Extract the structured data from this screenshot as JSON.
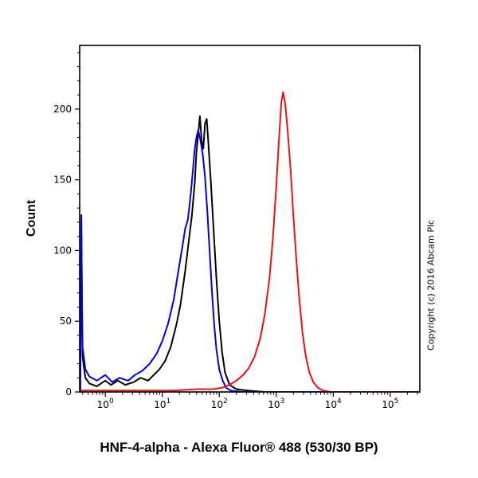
{
  "title": "HNF-4-alpha - Alexa Fluor® 488 (530/30 BP)",
  "copyright": "Copyright (c) 2016 Abcam Plc",
  "chart_data": {
    "type": "line",
    "subtype": "flow-cytometry-histogram",
    "title": "HNF-4-alpha - Alexa Fluor® 488 (530/30 BP)",
    "xlabel": "",
    "ylabel": "Count",
    "xscale": "log",
    "xlim_log": [
      -0.45,
      5.52
    ],
    "ylim": [
      0,
      245
    ],
    "yticks": [
      0,
      50,
      100,
      150,
      200
    ],
    "ytick_minor_step": 10,
    "xtick_exponents": [
      0,
      1,
      2,
      3,
      4,
      5
    ],
    "grid": false,
    "legend": "none",
    "frame_color": "#000000",
    "series": [
      {
        "name": "unlabelled-control-black",
        "color": "#000000",
        "width": 2,
        "points": [
          [
            -0.44,
            0
          ],
          [
            -0.43,
            60
          ],
          [
            -0.42,
            112
          ],
          [
            -0.41,
            70
          ],
          [
            -0.4,
            25
          ],
          [
            -0.35,
            10
          ],
          [
            -0.28,
            6
          ],
          [
            -0.15,
            4
          ],
          [
            0.0,
            8
          ],
          [
            0.1,
            5
          ],
          [
            0.22,
            8
          ],
          [
            0.35,
            5
          ],
          [
            0.5,
            7
          ],
          [
            0.62,
            10
          ],
          [
            0.75,
            8
          ],
          [
            0.85,
            12
          ],
          [
            0.95,
            16
          ],
          [
            1.05,
            22
          ],
          [
            1.15,
            32
          ],
          [
            1.25,
            48
          ],
          [
            1.32,
            62
          ],
          [
            1.4,
            85
          ],
          [
            1.46,
            105
          ],
          [
            1.52,
            125
          ],
          [
            1.57,
            148
          ],
          [
            1.6,
            170
          ],
          [
            1.63,
            182
          ],
          [
            1.66,
            195
          ],
          [
            1.69,
            178
          ],
          [
            1.72,
            172
          ],
          [
            1.75,
            190
          ],
          [
            1.78,
            193
          ],
          [
            1.81,
            175
          ],
          [
            1.85,
            150
          ],
          [
            1.9,
            115
          ],
          [
            1.95,
            80
          ],
          [
            2.0,
            50
          ],
          [
            2.05,
            28
          ],
          [
            2.1,
            14
          ],
          [
            2.18,
            5
          ],
          [
            2.3,
            2
          ],
          [
            2.5,
            1
          ],
          [
            2.8,
            0
          ],
          [
            5.5,
            0
          ]
        ]
      },
      {
        "name": "isotype-control-blue",
        "color": "#0000e0",
        "width": 2,
        "points": [
          [
            -0.44,
            0
          ],
          [
            -0.43,
            85
          ],
          [
            -0.42,
            125
          ],
          [
            -0.41,
            65
          ],
          [
            -0.4,
            32
          ],
          [
            -0.35,
            16
          ],
          [
            -0.28,
            11
          ],
          [
            -0.15,
            8
          ],
          [
            0.0,
            12
          ],
          [
            0.12,
            7
          ],
          [
            0.25,
            10
          ],
          [
            0.4,
            8
          ],
          [
            0.52,
            12
          ],
          [
            0.65,
            15
          ],
          [
            0.78,
            20
          ],
          [
            0.9,
            27
          ],
          [
            1.0,
            36
          ],
          [
            1.1,
            48
          ],
          [
            1.2,
            65
          ],
          [
            1.28,
            85
          ],
          [
            1.35,
            102
          ],
          [
            1.4,
            115
          ],
          [
            1.45,
            122
          ],
          [
            1.5,
            140
          ],
          [
            1.54,
            158
          ],
          [
            1.57,
            172
          ],
          [
            1.6,
            180
          ],
          [
            1.63,
            185
          ],
          [
            1.67,
            178
          ],
          [
            1.71,
            168
          ],
          [
            1.75,
            152
          ],
          [
            1.79,
            128
          ],
          [
            1.83,
            100
          ],
          [
            1.87,
            72
          ],
          [
            1.91,
            48
          ],
          [
            1.95,
            30
          ],
          [
            2.0,
            16
          ],
          [
            2.06,
            8
          ],
          [
            2.12,
            3
          ],
          [
            2.2,
            1
          ],
          [
            2.4,
            0
          ],
          [
            5.5,
            0
          ]
        ]
      },
      {
        "name": "hnf-4-alpha-stained-red",
        "color": "#ee1111",
        "width": 2,
        "points": [
          [
            -0.44,
            1
          ],
          [
            0.0,
            1
          ],
          [
            0.6,
            1
          ],
          [
            1.2,
            1
          ],
          [
            1.6,
            2
          ],
          [
            1.9,
            2
          ],
          [
            2.05,
            3
          ],
          [
            2.18,
            5
          ],
          [
            2.3,
            8
          ],
          [
            2.42,
            12
          ],
          [
            2.52,
            17
          ],
          [
            2.62,
            25
          ],
          [
            2.72,
            38
          ],
          [
            2.8,
            55
          ],
          [
            2.88,
            80
          ],
          [
            2.94,
            108
          ],
          [
            3.0,
            145
          ],
          [
            3.05,
            180
          ],
          [
            3.09,
            205
          ],
          [
            3.12,
            212
          ],
          [
            3.16,
            203
          ],
          [
            3.2,
            185
          ],
          [
            3.25,
            158
          ],
          [
            3.3,
            125
          ],
          [
            3.35,
            95
          ],
          [
            3.4,
            68
          ],
          [
            3.46,
            42
          ],
          [
            3.52,
            25
          ],
          [
            3.58,
            14
          ],
          [
            3.65,
            7
          ],
          [
            3.73,
            3
          ],
          [
            3.82,
            1
          ],
          [
            3.95,
            0
          ],
          [
            5.5,
            0
          ]
        ]
      }
    ]
  }
}
